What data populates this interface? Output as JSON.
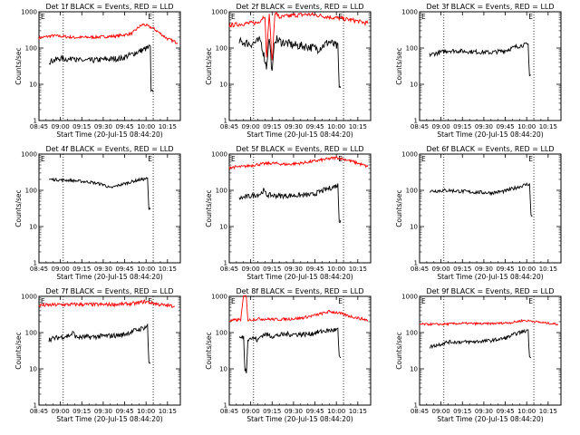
{
  "figure": {
    "xlabel": "Start Time (20-Jul-15 08:44:20)",
    "ylabel": "Counts/sec",
    "x_ticks": [
      "08:45",
      "09:00",
      "09:15",
      "09:30",
      "09:45",
      "10:00",
      "10:15"
    ],
    "y_ticks": [
      "1",
      "10",
      "100",
      "1000"
    ],
    "markers": {
      "start": "E",
      "end": "E"
    },
    "colors": {
      "events": "#000000",
      "lld": "#ff0000"
    }
  },
  "chart_data": [
    {
      "type": "line",
      "title": "Det 1f BLACK = Events, RED = LLD",
      "xlim_min": [
        0,
        99
      ],
      "ylog_lim": [
        1,
        1000
      ],
      "has_lld": true,
      "events": {
        "anchors": [
          [
            7,
            42
          ],
          [
            15,
            52
          ],
          [
            22,
            48
          ],
          [
            24,
            65
          ],
          [
            26,
            46
          ],
          [
            35,
            45
          ],
          [
            45,
            48
          ],
          [
            58,
            52
          ],
          [
            70,
            80
          ],
          [
            76,
            100
          ],
          [
            78,
            110
          ],
          [
            78.5,
            6
          ],
          [
            80,
            6
          ]
        ],
        "noise": 0.08
      },
      "lld": {
        "anchors": [
          [
            0,
            190
          ],
          [
            10,
            220
          ],
          [
            25,
            195
          ],
          [
            40,
            200
          ],
          [
            55,
            215
          ],
          [
            65,
            250
          ],
          [
            70,
            380
          ],
          [
            73,
            450
          ],
          [
            80,
            350
          ],
          [
            90,
            180
          ],
          [
            97,
            140
          ]
        ],
        "noise": 0.04
      }
    },
    {
      "type": "line",
      "title": "Det 2f BLACK = Events, RED = LLD",
      "xlim_min": [
        0,
        99
      ],
      "ylog_lim": [
        1,
        1000
      ],
      "has_lld": true,
      "events": {
        "anchors": [
          [
            7,
            150
          ],
          [
            15,
            130
          ],
          [
            22,
            160
          ],
          [
            26,
            30
          ],
          [
            28,
            200
          ],
          [
            30,
            20
          ],
          [
            32,
            180
          ],
          [
            36,
            150
          ],
          [
            45,
            120
          ],
          [
            55,
            110
          ],
          [
            62,
            95
          ],
          [
            70,
            150
          ],
          [
            76,
            105
          ],
          [
            77,
            8
          ],
          [
            78,
            8
          ]
        ],
        "noise": 0.12
      },
      "lld": {
        "anchors": [
          [
            0,
            420
          ],
          [
            10,
            470
          ],
          [
            20,
            500
          ],
          [
            25,
            800
          ],
          [
            26,
            50
          ],
          [
            28,
            900
          ],
          [
            30,
            40
          ],
          [
            32,
            1000
          ],
          [
            35,
            700
          ],
          [
            45,
            800
          ],
          [
            55,
            850
          ],
          [
            62,
            800
          ],
          [
            72,
            700
          ],
          [
            85,
            600
          ],
          [
            97,
            480
          ]
        ],
        "noise": 0.06
      }
    },
    {
      "type": "line",
      "title": "Det 3f BLACK = Events, RED = LLD",
      "xlim_min": [
        0,
        99
      ],
      "ylog_lim": [
        1,
        1000
      ],
      "has_lld": false,
      "events": {
        "anchors": [
          [
            7,
            65
          ],
          [
            20,
            85
          ],
          [
            35,
            80
          ],
          [
            50,
            75
          ],
          [
            60,
            85
          ],
          [
            68,
            110
          ],
          [
            72,
            120
          ],
          [
            76,
            125
          ],
          [
            77,
            18
          ],
          [
            78,
            18
          ]
        ],
        "noise": 0.06
      },
      "lld": null
    },
    {
      "type": "line",
      "title": "Det 4f BLACK = Events, RED = LLD",
      "xlim_min": [
        0,
        99
      ],
      "ylog_lim": [
        1,
        1000
      ],
      "has_lld": false,
      "events": {
        "anchors": [
          [
            7,
            200
          ],
          [
            20,
            190
          ],
          [
            35,
            170
          ],
          [
            45,
            145
          ],
          [
            50,
            115
          ],
          [
            55,
            135
          ],
          [
            62,
            160
          ],
          [
            70,
            195
          ],
          [
            76,
            210
          ],
          [
            77,
            30
          ],
          [
            78,
            30
          ]
        ],
        "noise": 0.04
      },
      "lld": null
    },
    {
      "type": "line",
      "title": "Det 5f BLACK = Events, RED = LLD",
      "xlim_min": [
        0,
        99
      ],
      "ylog_lim": [
        1,
        1000
      ],
      "has_lld": true,
      "events": {
        "anchors": [
          [
            7,
            60
          ],
          [
            15,
            70
          ],
          [
            22,
            80
          ],
          [
            24,
            100
          ],
          [
            26,
            75
          ],
          [
            35,
            70
          ],
          [
            45,
            72
          ],
          [
            58,
            75
          ],
          [
            66,
            100
          ],
          [
            72,
            120
          ],
          [
            76,
            140
          ],
          [
            77,
            15
          ],
          [
            78,
            15
          ]
        ],
        "noise": 0.07
      },
      "lld": {
        "anchors": [
          [
            0,
            430
          ],
          [
            10,
            450
          ],
          [
            20,
            520
          ],
          [
            30,
            560
          ],
          [
            40,
            520
          ],
          [
            50,
            560
          ],
          [
            60,
            640
          ],
          [
            68,
            720
          ],
          [
            75,
            800
          ],
          [
            82,
            700
          ],
          [
            90,
            560
          ],
          [
            97,
            450
          ]
        ],
        "noise": 0.04
      }
    },
    {
      "type": "line",
      "title": "Det 6f BLACK = Events, RED = LLD",
      "xlim_min": [
        0,
        99
      ],
      "ylog_lim": [
        1,
        1000
      ],
      "has_lld": false,
      "events": {
        "anchors": [
          [
            7,
            95
          ],
          [
            20,
            100
          ],
          [
            35,
            90
          ],
          [
            50,
            85
          ],
          [
            60,
            95
          ],
          [
            68,
            120
          ],
          [
            75,
            145
          ],
          [
            77,
            150
          ],
          [
            78,
            20
          ],
          [
            79,
            20
          ]
        ],
        "noise": 0.05
      },
      "lld": null
    },
    {
      "type": "line",
      "title": "Det 7f BLACK = Events, RED = LLD",
      "xlim_min": [
        0,
        99
      ],
      "ylog_lim": [
        1,
        1000
      ],
      "has_lld": true,
      "events": {
        "anchors": [
          [
            7,
            65
          ],
          [
            15,
            75
          ],
          [
            22,
            85
          ],
          [
            24,
            100
          ],
          [
            26,
            75
          ],
          [
            35,
            75
          ],
          [
            45,
            80
          ],
          [
            58,
            85
          ],
          [
            66,
            110
          ],
          [
            72,
            130
          ],
          [
            76,
            150
          ],
          [
            77,
            15
          ],
          [
            78,
            15
          ]
        ],
        "noise": 0.07
      },
      "lld": {
        "anchors": [
          [
            0,
            560
          ],
          [
            15,
            590
          ],
          [
            30,
            600
          ],
          [
            45,
            590
          ],
          [
            60,
            610
          ],
          [
            68,
            640
          ],
          [
            74,
            720
          ],
          [
            80,
            650
          ],
          [
            88,
            560
          ],
          [
            95,
            540
          ]
        ],
        "noise": 0.05
      }
    },
    {
      "type": "line",
      "title": "Det 8f BLACK = Events, RED = LLD",
      "xlim_min": [
        0,
        99
      ],
      "ylog_lim": [
        1,
        1000
      ],
      "has_lld": true,
      "events": {
        "anchors": [
          [
            7,
            70
          ],
          [
            10,
            75
          ],
          [
            11,
            10
          ],
          [
            12,
            8
          ],
          [
            13,
            70
          ],
          [
            18,
            70
          ],
          [
            20,
            60
          ],
          [
            22,
            80
          ],
          [
            25,
            90
          ],
          [
            30,
            80
          ],
          [
            40,
            90
          ],
          [
            55,
            90
          ],
          [
            66,
            110
          ],
          [
            76,
            120
          ],
          [
            77,
            20
          ],
          [
            78,
            20
          ]
        ],
        "noise": 0.07
      },
      "lld": {
        "anchors": [
          [
            0,
            210
          ],
          [
            8,
            230
          ],
          [
            10,
            1000
          ],
          [
            12,
            1000
          ],
          [
            13,
            220
          ],
          [
            20,
            240
          ],
          [
            35,
            230
          ],
          [
            50,
            250
          ],
          [
            60,
            300
          ],
          [
            70,
            380
          ],
          [
            75,
            360
          ],
          [
            85,
            280
          ],
          [
            97,
            220
          ]
        ],
        "noise": 0.04
      }
    },
    {
      "type": "line",
      "title": "Det 9f BLACK = Events, RED = LLD",
      "xlim_min": [
        0,
        99
      ],
      "ylog_lim": [
        1,
        1000
      ],
      "has_lld": true,
      "events": {
        "anchors": [
          [
            7,
            40
          ],
          [
            20,
            55
          ],
          [
            35,
            55
          ],
          [
            50,
            60
          ],
          [
            60,
            70
          ],
          [
            68,
            95
          ],
          [
            74,
            110
          ],
          [
            76,
            120
          ],
          [
            77,
            20
          ],
          [
            78,
            20
          ]
        ],
        "noise": 0.05
      },
      "lld": {
        "anchors": [
          [
            0,
            170
          ],
          [
            15,
            170
          ],
          [
            30,
            180
          ],
          [
            45,
            175
          ],
          [
            55,
            180
          ],
          [
            65,
            190
          ],
          [
            72,
            215
          ],
          [
            78,
            210
          ],
          [
            85,
            190
          ],
          [
            97,
            170
          ]
        ],
        "noise": 0.03
      }
    }
  ]
}
